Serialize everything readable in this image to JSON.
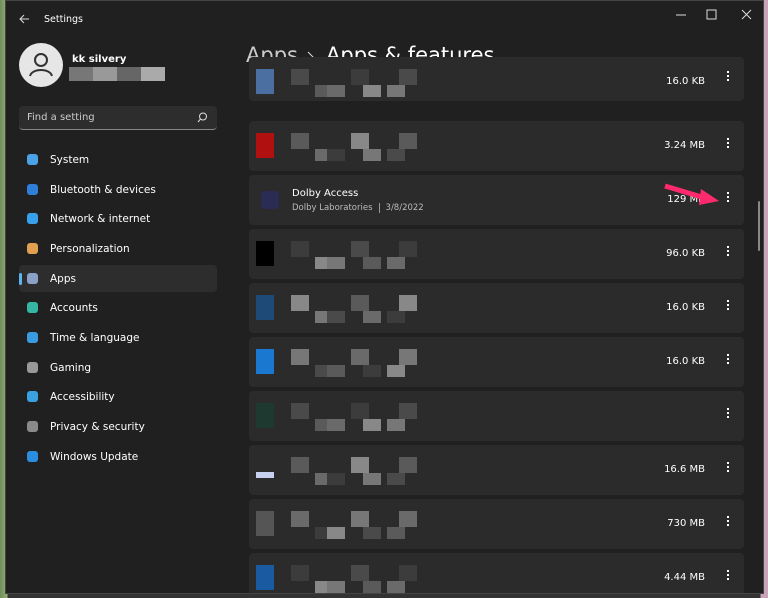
{
  "window": {
    "title": "Settings"
  },
  "user": {
    "name": "kk silvery"
  },
  "search": {
    "placeholder": "Find a setting"
  },
  "nav": [
    "System",
    "Bluetooth & devices",
    "Network & internet",
    "Personalization",
    "Apps",
    "Accounts",
    "Time & language",
    "Gaming",
    "Accessibility",
    "Privacy & security",
    "Windows Update"
  ],
  "breadcrumb": {
    "parent": "Apps",
    "current": "Apps & features"
  },
  "apps": [
    {
      "size": "16.0 KB"
    },
    {
      "size": "3.24 MB"
    },
    {
      "name": "Dolby Access",
      "publisher": "Dolby Laboratories",
      "date": "3/8/2022",
      "size": "129 MB"
    },
    {
      "size": "96.0 KB"
    },
    {
      "size": "16.0 KB"
    },
    {
      "size": "16.0 KB"
    },
    {},
    {
      "size": "16.6 MB"
    },
    {
      "size": "730 MB"
    },
    {
      "size": "4.44 MB"
    }
  ]
}
